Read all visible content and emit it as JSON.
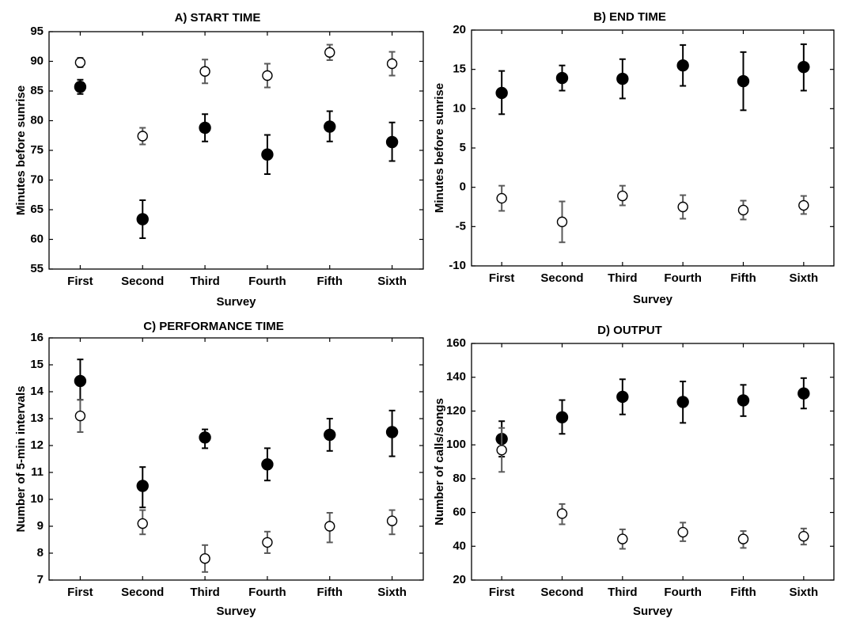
{
  "chart_data": [
    {
      "type": "scatter",
      "title": "A) START TIME",
      "xlabel": "Survey",
      "ylabel": "Minutes before sunrise",
      "categories": [
        "First",
        "Second",
        "Third",
        "Fourth",
        "Fifth",
        "Sixth"
      ],
      "ylim": [
        55,
        95
      ],
      "yticks": [
        "55",
        "60",
        "65",
        "70",
        "75",
        "80",
        "85",
        "90",
        "95"
      ],
      "series": [
        {
          "marker": "filled-circle",
          "values": [
            85.7,
            63.4,
            78.8,
            74.3,
            79.0,
            76.4
          ],
          "lower": [
            84.5,
            60.2,
            76.5,
            71.0,
            76.5,
            73.2
          ],
          "upper": [
            86.9,
            66.6,
            81.1,
            77.6,
            81.6,
            79.7
          ]
        },
        {
          "marker": "open-circle",
          "values": [
            89.8,
            77.4,
            88.3,
            87.6,
            91.5,
            89.6
          ],
          "lower": [
            89.0,
            76.0,
            86.3,
            85.6,
            90.2,
            87.6
          ],
          "upper": [
            90.6,
            78.8,
            90.3,
            89.6,
            92.8,
            91.6
          ]
        }
      ]
    },
    {
      "type": "scatter",
      "title": "B) END TIME",
      "xlabel": "Survey",
      "ylabel": "Minutes before sunrise",
      "categories": [
        "First",
        "Second",
        "Third",
        "Fourth",
        "Fifth",
        "Sixth"
      ],
      "ylim": [
        -10,
        20
      ],
      "yticks": [
        "-10",
        "-5",
        "0",
        "5",
        "10",
        "15",
        "20"
      ],
      "series": [
        {
          "marker": "filled-circle",
          "values": [
            12.0,
            13.9,
            13.8,
            15.5,
            13.5,
            15.3
          ],
          "lower": [
            9.3,
            12.3,
            11.3,
            12.9,
            9.8,
            12.3
          ],
          "upper": [
            14.8,
            15.5,
            16.3,
            18.1,
            17.2,
            18.2
          ]
        },
        {
          "marker": "open-circle",
          "values": [
            -1.4,
            -4.4,
            -1.1,
            -2.5,
            -2.9,
            -2.3
          ],
          "lower": [
            -3.0,
            -7.0,
            -2.3,
            -4.0,
            -4.1,
            -3.4
          ],
          "upper": [
            0.2,
            -1.8,
            0.2,
            -1.0,
            -1.7,
            -1.1
          ]
        }
      ]
    },
    {
      "type": "scatter",
      "title": "C) PERFORMANCE TIME",
      "xlabel": "Survey",
      "ylabel": "Number of 5-min intervals",
      "categories": [
        "First",
        "Second",
        "Third",
        "Fourth",
        "Fifth",
        "Sixth"
      ],
      "ylim": [
        7,
        16
      ],
      "yticks": [
        "7",
        "8",
        "9",
        "10",
        "11",
        "12",
        "13",
        "14",
        "15",
        "16"
      ],
      "series": [
        {
          "marker": "filled-circle",
          "values": [
            14.4,
            10.5,
            12.3,
            11.3,
            12.4,
            12.5
          ],
          "lower": [
            13.7,
            9.7,
            11.9,
            10.7,
            11.8,
            11.6
          ],
          "upper": [
            15.2,
            11.2,
            12.6,
            11.9,
            13.0,
            13.3
          ]
        },
        {
          "marker": "open-circle",
          "values": [
            13.1,
            9.1,
            7.8,
            8.4,
            9.0,
            9.2
          ],
          "lower": [
            12.5,
            8.7,
            7.3,
            8.0,
            8.4,
            8.7
          ],
          "upper": [
            13.7,
            9.6,
            8.3,
            8.8,
            9.5,
            9.6
          ]
        }
      ]
    },
    {
      "type": "scatter",
      "title": "D) OUTPUT",
      "xlabel": "Survey",
      "ylabel": "Number of calls/songs",
      "categories": [
        "First",
        "Second",
        "Third",
        "Fourth",
        "Fifth",
        "Sixth"
      ],
      "ylim": [
        20,
        160
      ],
      "yticks": [
        "20",
        "40",
        "60",
        "80",
        "100",
        "120",
        "140",
        "160"
      ],
      "series": [
        {
          "marker": "filled-circle",
          "values": [
            103.5,
            116.3,
            128.4,
            125.4,
            126.3,
            130.4
          ],
          "lower": [
            93.0,
            106.5,
            118.0,
            113.0,
            117.0,
            121.5
          ],
          "upper": [
            114.0,
            126.5,
            138.8,
            137.5,
            135.5,
            139.5
          ]
        },
        {
          "marker": "open-circle",
          "values": [
            96.9,
            59.3,
            44.3,
            48.3,
            44.3,
            45.9
          ],
          "lower": [
            84.0,
            53.0,
            38.5,
            43.0,
            39.0,
            41.0
          ],
          "upper": [
            110.0,
            65.0,
            50.0,
            54.0,
            49.0,
            50.5
          ]
        }
      ]
    }
  ]
}
